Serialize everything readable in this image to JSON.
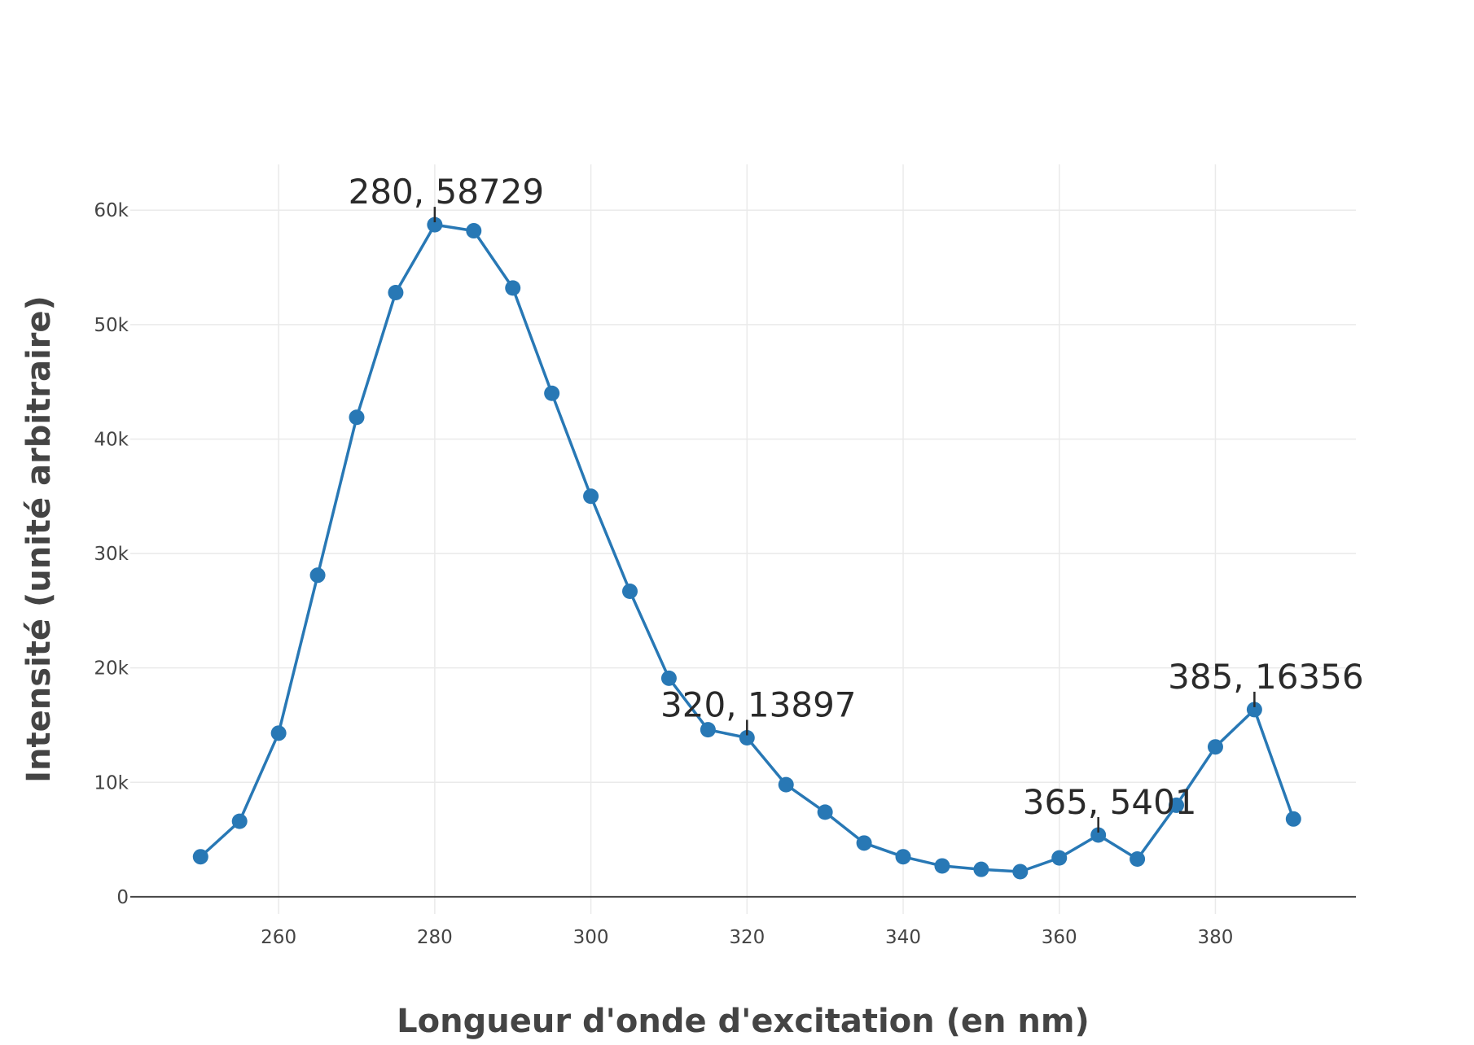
{
  "chart_data": {
    "type": "line",
    "title": "",
    "xlabel": "Longueur d'onde d'excitation (en nm)",
    "ylabel": "Intensité (unité arbitraire)",
    "xlim": [
      241,
      398
    ],
    "ylim": [
      -1500,
      64000
    ],
    "x_ticks": [
      260,
      280,
      300,
      320,
      340,
      360,
      380
    ],
    "x_tick_labels": [
      "260",
      "280",
      "300",
      "320",
      "340",
      "360",
      "380"
    ],
    "y_ticks": [
      0,
      10000,
      20000,
      30000,
      40000,
      50000,
      60000
    ],
    "y_tick_labels": [
      "0",
      "10k",
      "20k",
      "30k",
      "40k",
      "50k",
      "60k"
    ],
    "grid": true,
    "legend": "none",
    "series": [
      {
        "name": "",
        "color": "#2878b5",
        "x": [
          250,
          255,
          260,
          265,
          270,
          275,
          280,
          285,
          290,
          295,
          300,
          305,
          310,
          315,
          320,
          325,
          330,
          335,
          340,
          345,
          350,
          355,
          360,
          365,
          370,
          375,
          380,
          385,
          390
        ],
        "y": [
          3500,
          6600,
          14300,
          28100,
          41900,
          52800,
          58729,
          58200,
          53200,
          44000,
          35000,
          26700,
          19100,
          14600,
          13897,
          9800,
          7400,
          4700,
          3500,
          2700,
          2400,
          2200,
          3400,
          5401,
          3300,
          8000,
          13100,
          16356,
          6800
        ]
      }
    ],
    "annotations": [
      {
        "x": 280,
        "y": 58729,
        "text": "280, 58729"
      },
      {
        "x": 320,
        "y": 13897,
        "text": "320, 13897"
      },
      {
        "x": 365,
        "y": 5401,
        "text": "365, 5401"
      },
      {
        "x": 385,
        "y": 16356,
        "text": "385, 16356"
      }
    ]
  }
}
